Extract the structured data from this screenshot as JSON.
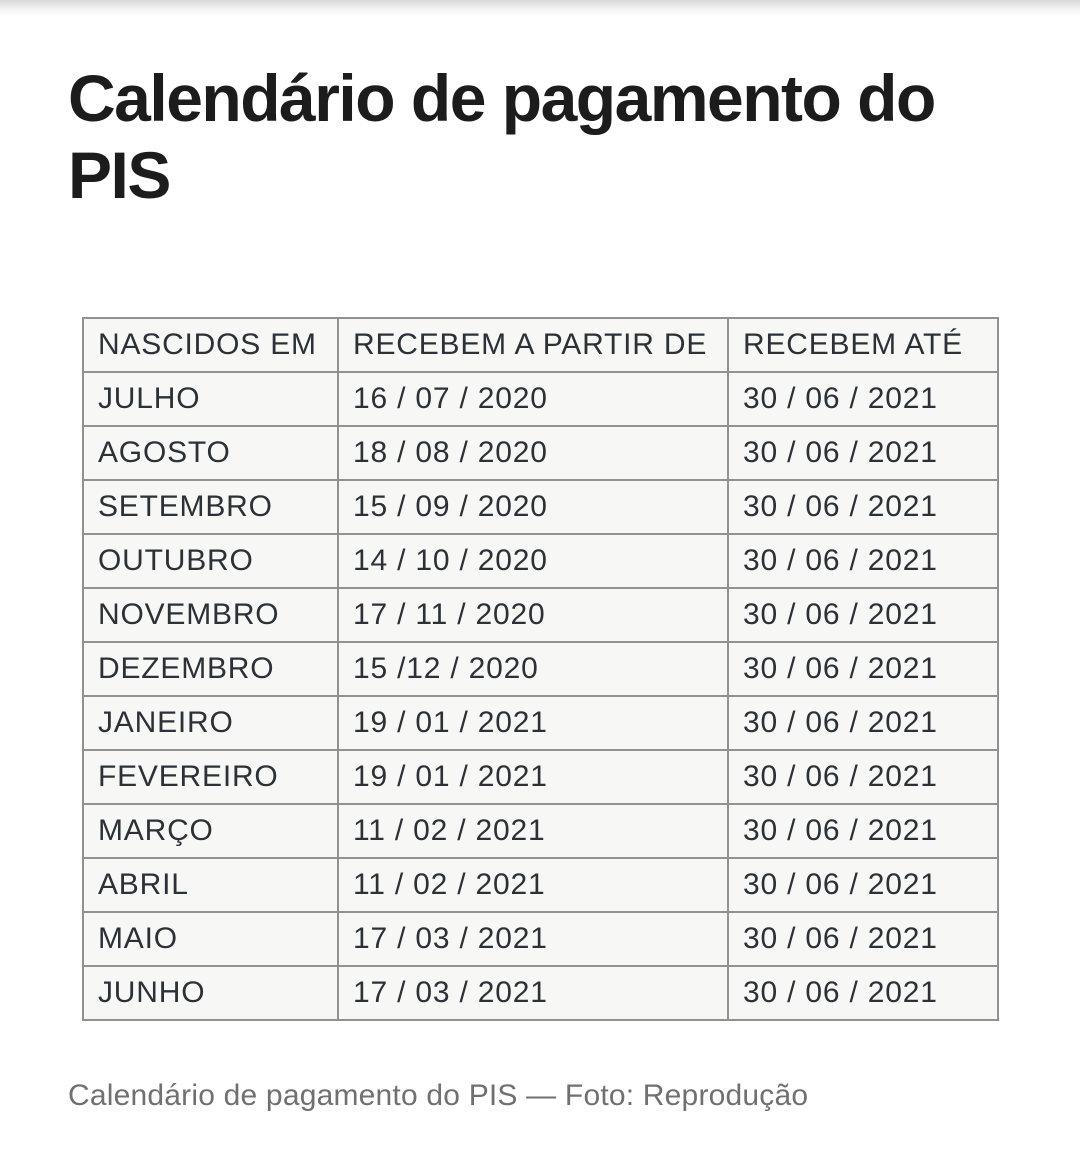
{
  "page": {
    "title": "Calendário de pagamento do PIS",
    "caption": "Calendário de pagamento do PIS — Foto: Reprodução"
  },
  "table": {
    "headers": [
      "NASCIDOS EM",
      "RECEBEM A PARTIR DE",
      "RECEBEM ATÉ"
    ],
    "rows": [
      [
        "JULHO",
        "16 / 07 / 2020",
        "30 / 06 / 2021"
      ],
      [
        "AGOSTO",
        "18 / 08 / 2020",
        "30 / 06 / 2021"
      ],
      [
        "SETEMBRO",
        "15 / 09 / 2020",
        "30 / 06 / 2021"
      ],
      [
        "OUTUBRO",
        "14 / 10 / 2020",
        "30 / 06 / 2021"
      ],
      [
        "NOVEMBRO",
        "17 / 11 / 2020",
        "30 / 06 / 2021"
      ],
      [
        "DEZEMBRO",
        "15 /12 / 2020",
        "30 / 06 / 2021"
      ],
      [
        "JANEIRO",
        "19 / 01 / 2021",
        "30 / 06 / 2021"
      ],
      [
        "FEVEREIRO",
        "19 / 01 / 2021",
        "30 / 06 / 2021"
      ],
      [
        "MARÇO",
        "11 / 02 / 2021",
        "30 / 06 / 2021"
      ],
      [
        "ABRIL",
        "11 / 02 / 2021",
        "30 / 06 / 2021"
      ],
      [
        "MAIO",
        "17 / 03 / 2021",
        "30 / 06 / 2021"
      ],
      [
        "JUNHO",
        "17 / 03 / 2021",
        "30 / 06 / 2021"
      ]
    ]
  },
  "colors": {
    "title_text": "#1c1c1c",
    "table_text": "#2b3137",
    "table_border": "#919191",
    "table_cell_background": "#f7f7f5",
    "caption_text": "#707070",
    "page_background": "#ffffff"
  }
}
